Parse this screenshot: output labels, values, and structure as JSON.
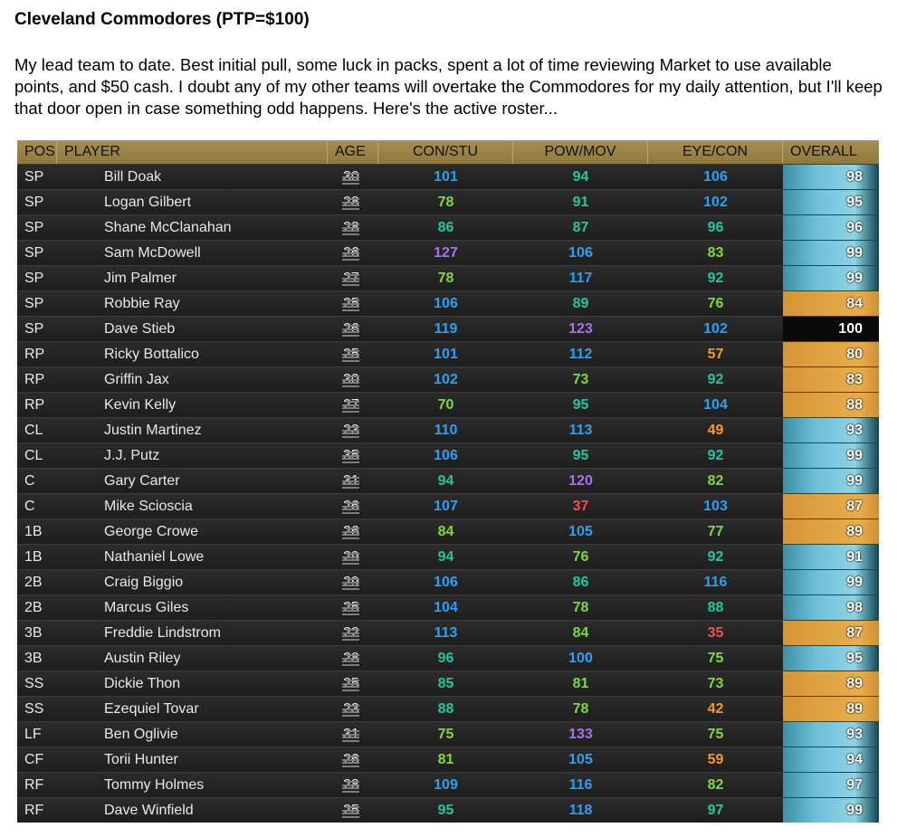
{
  "title": "Cleveland Commodores (PTP=$100)",
  "intro": "My lead team to date. Best initial pull, some luck in packs, spent a lot of time reviewing Market to use available points, and $50 cash. I doubt any of my other teams will overtake the Commodores for my daily attention, but I'll keep that door open in case something odd happens. Here's the active roster...",
  "headers": {
    "pos": "POS",
    "player": "PLAYER",
    "age": "AGE",
    "con_stu": "CON/STU",
    "pow_mov": "POW/MOV",
    "eye_con": "EYE/CON",
    "overall": "OVERALL"
  },
  "colors": {
    "header_bg": "#a08a4e",
    "row_bg": "#262626",
    "stat_purple": "#b06cf2",
    "stat_blue": "#2f9ff2",
    "stat_teal": "#22c7a2",
    "stat_green": "#7ed93b",
    "stat_orange": "#f59a22",
    "stat_red": "#f0524f",
    "tier_diamond": "#6fc0d8",
    "tier_gold": "#e8ad4a",
    "tier_perfect": "#0a0a0a"
  },
  "icons": {
    "row_menu": "hamburger-menu-icon"
  },
  "roster": [
    {
      "pos": "SP",
      "player": "Bill Doak",
      "age": "30",
      "con": "101",
      "pow": "94",
      "eye": "106",
      "overall": "98"
    },
    {
      "pos": "SP",
      "player": "Logan Gilbert",
      "age": "28",
      "con": "78",
      "pow": "91",
      "eye": "102",
      "overall": "95"
    },
    {
      "pos": "SP",
      "player": "Shane McClanahan",
      "age": "28",
      "con": "86",
      "pow": "87",
      "eye": "96",
      "overall": "96"
    },
    {
      "pos": "SP",
      "player": "Sam McDowell",
      "age": "26",
      "con": "127",
      "pow": "106",
      "eye": "83",
      "overall": "99"
    },
    {
      "pos": "SP",
      "player": "Jim Palmer",
      "age": "27",
      "con": "78",
      "pow": "117",
      "eye": "92",
      "overall": "99"
    },
    {
      "pos": "SP",
      "player": "Robbie Ray",
      "age": "25",
      "con": "106",
      "pow": "89",
      "eye": "76",
      "overall": "84"
    },
    {
      "pos": "SP",
      "player": "Dave Stieb",
      "age": "26",
      "con": "119",
      "pow": "123",
      "eye": "102",
      "overall": "100"
    },
    {
      "pos": "RP",
      "player": "Ricky Bottalico",
      "age": "25",
      "con": "101",
      "pow": "112",
      "eye": "57",
      "overall": "80"
    },
    {
      "pos": "RP",
      "player": "Griffin Jax",
      "age": "30",
      "con": "102",
      "pow": "73",
      "eye": "92",
      "overall": "83"
    },
    {
      "pos": "RP",
      "player": "Kevin Kelly",
      "age": "27",
      "con": "70",
      "pow": "95",
      "eye": "104",
      "overall": "88"
    },
    {
      "pos": "CL",
      "player": "Justin Martinez",
      "age": "23",
      "con": "110",
      "pow": "113",
      "eye": "49",
      "overall": "93"
    },
    {
      "pos": "CL",
      "player": "J.J. Putz",
      "age": "35",
      "con": "106",
      "pow": "95",
      "eye": "92",
      "overall": "99"
    },
    {
      "pos": "C",
      "player": "Gary Carter",
      "age": "31",
      "con": "94",
      "pow": "120",
      "eye": "82",
      "overall": "99"
    },
    {
      "pos": "C",
      "player": "Mike Scioscia",
      "age": "26",
      "con": "107",
      "pow": "37",
      "eye": "103",
      "overall": "87"
    },
    {
      "pos": "1B",
      "player": "George Crowe",
      "age": "26",
      "con": "84",
      "pow": "105",
      "eye": "77",
      "overall": "89"
    },
    {
      "pos": "1B",
      "player": "Nathaniel Lowe",
      "age": "29",
      "con": "94",
      "pow": "76",
      "eye": "92",
      "overall": "91"
    },
    {
      "pos": "2B",
      "player": "Craig Biggio",
      "age": "29",
      "con": "106",
      "pow": "86",
      "eye": "116",
      "overall": "99"
    },
    {
      "pos": "2B",
      "player": "Marcus Giles",
      "age": "25",
      "con": "104",
      "pow": "78",
      "eye": "88",
      "overall": "98"
    },
    {
      "pos": "3B",
      "player": "Freddie Lindstrom",
      "age": "22",
      "con": "113",
      "pow": "84",
      "eye": "35",
      "overall": "87"
    },
    {
      "pos": "3B",
      "player": "Austin Riley",
      "age": "28",
      "con": "96",
      "pow": "100",
      "eye": "75",
      "overall": "95"
    },
    {
      "pos": "SS",
      "player": "Dickie Thon",
      "age": "25",
      "con": "85",
      "pow": "81",
      "eye": "73",
      "overall": "89"
    },
    {
      "pos": "SS",
      "player": "Ezequiel Tovar",
      "age": "23",
      "con": "88",
      "pow": "78",
      "eye": "42",
      "overall": "89"
    },
    {
      "pos": "LF",
      "player": "Ben Oglivie",
      "age": "31",
      "con": "75",
      "pow": "133",
      "eye": "75",
      "overall": "93"
    },
    {
      "pos": "CF",
      "player": "Torii Hunter",
      "age": "26",
      "con": "81",
      "pow": "105",
      "eye": "59",
      "overall": "94"
    },
    {
      "pos": "RF",
      "player": "Tommy Holmes",
      "age": "28",
      "con": "109",
      "pow": "116",
      "eye": "82",
      "overall": "97"
    },
    {
      "pos": "RF",
      "player": "Dave Winfield",
      "age": "25",
      "con": "95",
      "pow": "118",
      "eye": "97",
      "overall": "99"
    }
  ]
}
